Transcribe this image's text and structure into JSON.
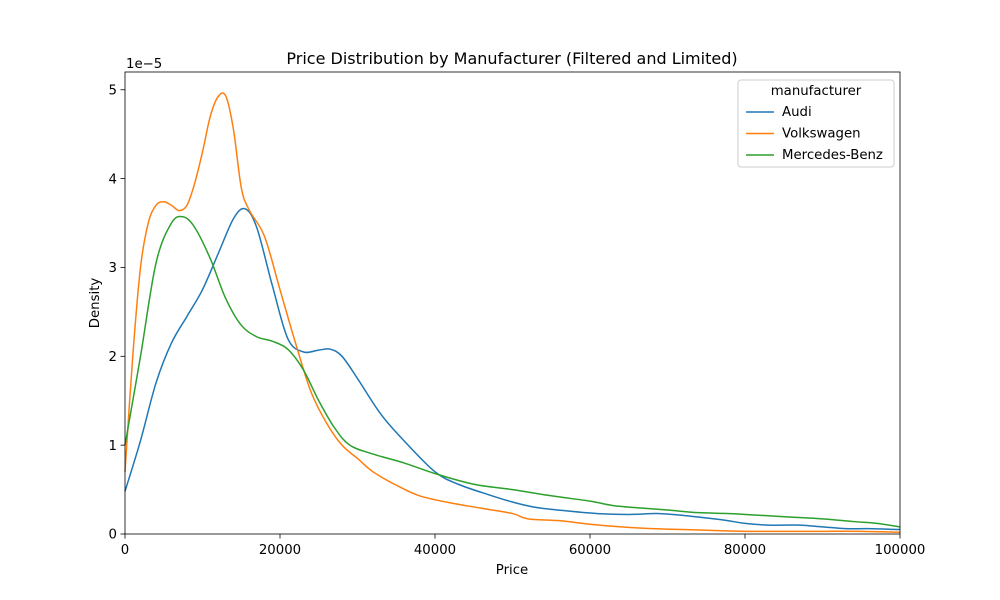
{
  "chart_data": {
    "type": "line",
    "title": "Price Distribution by Manufacturer (Filtered and Limited)",
    "xlabel": "Price",
    "ylabel": "Density",
    "y_offset_label": "1e−5",
    "xlim": [
      0,
      100000
    ],
    "ylim": [
      0,
      5.2
    ],
    "y_scale_note": "values in units of 1e-5",
    "xticks": [
      0,
      20000,
      40000,
      60000,
      80000,
      100000
    ],
    "xtick_labels": [
      "0",
      "20000",
      "40000",
      "60000",
      "80000",
      "100000"
    ],
    "yticks": [
      0,
      1,
      2,
      3,
      4,
      5
    ],
    "ytick_labels": [
      "0",
      "1",
      "2",
      "3",
      "4",
      "5"
    ],
    "grid": false,
    "legend": {
      "title": "manufacturer",
      "placement": "upper-right"
    },
    "series": [
      {
        "name": "Audi",
        "color": "#1f77b4",
        "x": [
          0,
          2000,
          4000,
          6000,
          8000,
          10000,
          12000,
          14000,
          15500,
          17000,
          19000,
          21000,
          23000,
          25000,
          26500,
          28000,
          30000,
          33000,
          36000,
          40000,
          43000,
          47000,
          50000,
          53000,
          57000,
          61000,
          65000,
          69000,
          73000,
          77000,
          80000,
          83000,
          87000,
          90000,
          93000,
          96000,
          100000
        ],
        "y": [
          0.48,
          1.05,
          1.7,
          2.15,
          2.45,
          2.75,
          3.15,
          3.55,
          3.66,
          3.45,
          2.8,
          2.2,
          2.05,
          2.07,
          2.08,
          2.0,
          1.75,
          1.35,
          1.05,
          0.7,
          0.56,
          0.44,
          0.36,
          0.3,
          0.26,
          0.23,
          0.22,
          0.23,
          0.2,
          0.16,
          0.12,
          0.1,
          0.1,
          0.08,
          0.06,
          0.06,
          0.05
        ]
      },
      {
        "name": "Volkswagen",
        "color": "#ff7f0e",
        "x": [
          0,
          1000,
          2000,
          3000,
          4000,
          5000,
          6000,
          7000,
          8000,
          9000,
          10000,
          11000,
          12000,
          13000,
          14000,
          15000,
          16000,
          18000,
          20000,
          22000,
          24000,
          26000,
          28000,
          30000,
          32000,
          35000,
          38000,
          42000,
          46000,
          50000,
          52000,
          56000,
          60000,
          64000,
          68000,
          72000,
          76000,
          80000,
          85000,
          90000,
          95000,
          100000
        ],
        "y": [
          0.7,
          2.0,
          3.0,
          3.5,
          3.7,
          3.74,
          3.7,
          3.64,
          3.7,
          3.95,
          4.3,
          4.7,
          4.92,
          4.93,
          4.55,
          3.9,
          3.65,
          3.35,
          2.75,
          2.15,
          1.6,
          1.25,
          1.0,
          0.85,
          0.7,
          0.55,
          0.43,
          0.35,
          0.29,
          0.23,
          0.17,
          0.15,
          0.11,
          0.08,
          0.06,
          0.05,
          0.04,
          0.03,
          0.03,
          0.03,
          0.03,
          0.02
        ]
      },
      {
        "name": "Mercedes-Benz",
        "color": "#2ca02c",
        "x": [
          0,
          2000,
          4000,
          6000,
          7500,
          9000,
          11000,
          13000,
          15000,
          17000,
          19000,
          21000,
          23000,
          25000,
          27000,
          29000,
          32000,
          36000,
          40000,
          45000,
          50000,
          55000,
          60000,
          63000,
          67000,
          70000,
          74000,
          78000,
          82000,
          86000,
          90000,
          94000,
          97000,
          100000
        ],
        "y": [
          1.0,
          2.0,
          3.05,
          3.5,
          3.57,
          3.45,
          3.1,
          2.65,
          2.35,
          2.22,
          2.17,
          2.08,
          1.85,
          1.5,
          1.2,
          1.0,
          0.9,
          0.8,
          0.68,
          0.56,
          0.5,
          0.43,
          0.37,
          0.32,
          0.29,
          0.27,
          0.24,
          0.23,
          0.21,
          0.19,
          0.17,
          0.14,
          0.12,
          0.08
        ]
      }
    ]
  }
}
